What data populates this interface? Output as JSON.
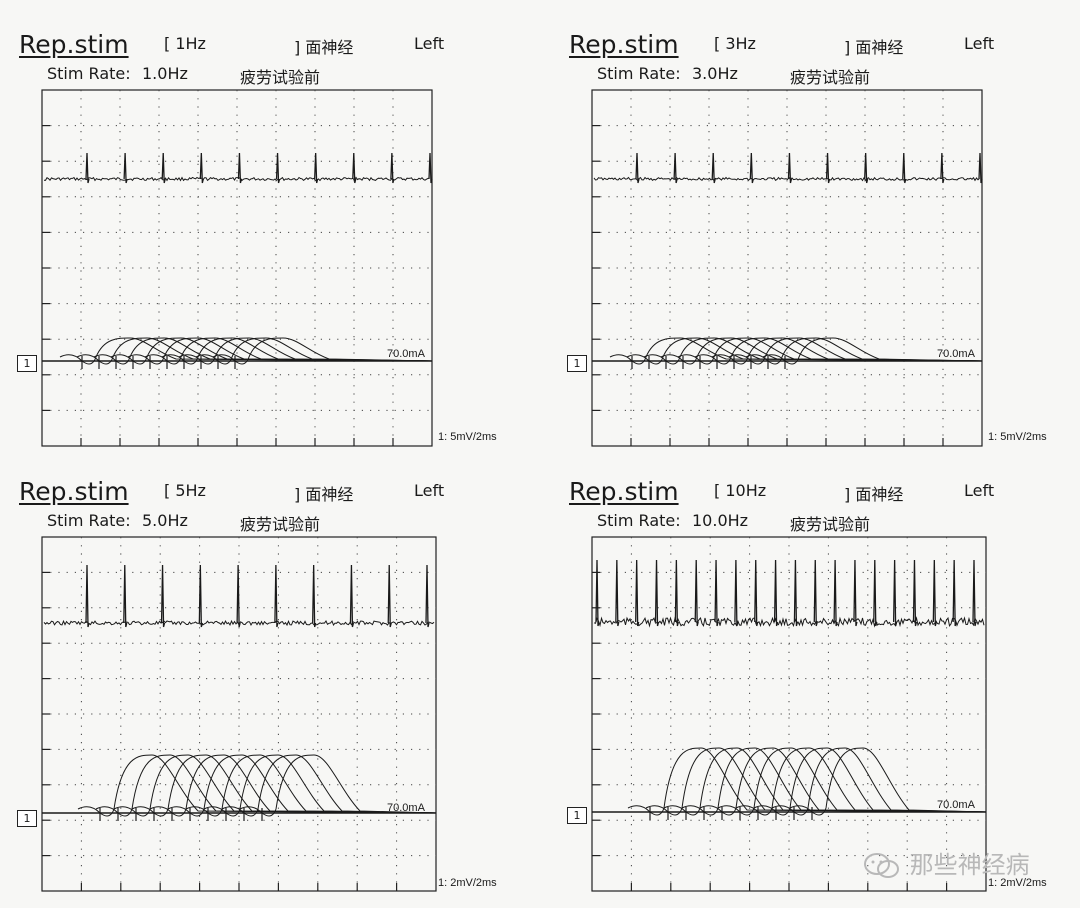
{
  "chart_data": [
    {
      "type": "line",
      "title": "Rep.stim",
      "frequency_label": "[ 1Hz",
      "nerve_label": "] 面神经",
      "side": "Left",
      "stim_rate_label": "Stim Rate:",
      "stim_rate_value": "1.0Hz",
      "condition": "疲劳试验前",
      "channel": "1",
      "current_label": "70.0mA",
      "scale_label": "1: 5mV/2ms",
      "stim_rate_hz": 1.0,
      "stimulus_count": 10,
      "artifact_spikes": 10,
      "cmap_relative_amplitudes": [
        1,
        1,
        1,
        1,
        1,
        1,
        1,
        1,
        1,
        1
      ]
    },
    {
      "type": "line",
      "title": "Rep.stim",
      "frequency_label": "[ 3Hz",
      "nerve_label": "] 面神经",
      "side": "Left",
      "stim_rate_label": "Stim Rate:",
      "stim_rate_value": "3.0Hz",
      "condition": "疲劳试验前",
      "channel": "1",
      "current_label": "70.0mA",
      "scale_label": "1: 5mV/2ms",
      "stim_rate_hz": 3.0,
      "stimulus_count": 10,
      "artifact_spikes": 10,
      "cmap_relative_amplitudes": [
        1,
        1,
        1,
        1,
        1,
        1,
        1,
        1,
        1,
        1
      ]
    },
    {
      "type": "line",
      "title": "Rep.stim",
      "frequency_label": "[ 5Hz",
      "nerve_label": "] 面神经",
      "side": "Left",
      "stim_rate_label": "Stim Rate:",
      "stim_rate_value": "5.0Hz",
      "condition": "疲劳试验前",
      "channel": "1",
      "current_label": "70.0mA",
      "scale_label": "1: 2mV/2ms",
      "stim_rate_hz": 5.0,
      "stimulus_count": 10,
      "artifact_spikes": 10,
      "cmap_relative_amplitudes": [
        1,
        1,
        1,
        1,
        1,
        1,
        1,
        1,
        1,
        1
      ]
    },
    {
      "type": "line",
      "title": "Rep.stim",
      "frequency_label": "[ 10Hz",
      "nerve_label": "] 面神经",
      "side": "Left",
      "stim_rate_label": "Stim Rate:",
      "stim_rate_value": "10.0Hz",
      "condition": "疲劳试验前",
      "channel": "1",
      "current_label": "70.0mA",
      "scale_label": "1: 2mV/2ms",
      "stim_rate_hz": 10.0,
      "stimulus_count": 10,
      "artifact_spikes": 20,
      "cmap_relative_amplitudes": [
        1,
        1,
        1,
        1,
        1,
        1,
        1,
        1,
        1,
        1
      ]
    }
  ],
  "watermark": {
    "text": "那些神经病",
    "icon": "wechat-icon"
  },
  "colors": {
    "trace": "#1a1a1a",
    "grid": "#333333",
    "background": "#f7f7f5"
  }
}
